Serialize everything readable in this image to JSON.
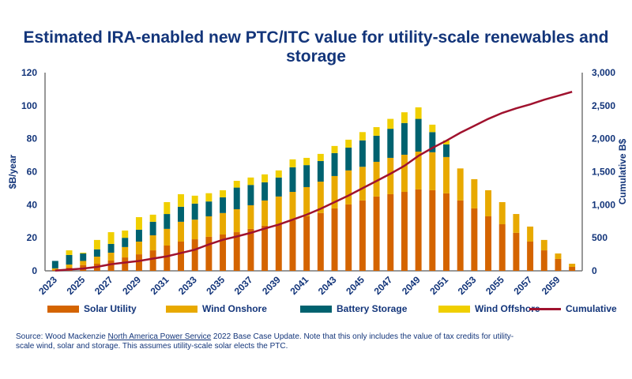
{
  "chart_data": {
    "type": "bar",
    "stacked": true,
    "title": "Estimated IRA-enabled new PTC/ITC value for utility-scale renewables and storage",
    "ylabel": "$B/year",
    "ylabel_right": "Cumulative B$",
    "ylim": [
      0,
      120
    ],
    "ylim_right": [
      0,
      3000
    ],
    "yticks": [
      "0",
      "20",
      "40",
      "60",
      "80",
      "100",
      "120"
    ],
    "yticks_right": [
      "0",
      "500",
      "1,000",
      "1,500",
      "2,000",
      "2,500",
      "3,000"
    ],
    "grid": false,
    "legend_position": "bottom",
    "categories": [
      2023,
      2024,
      2025,
      2026,
      2027,
      2028,
      2029,
      2030,
      2031,
      2032,
      2033,
      2034,
      2035,
      2036,
      2037,
      2038,
      2039,
      2040,
      2041,
      2042,
      2043,
      2044,
      2045,
      2046,
      2047,
      2048,
      2049,
      2050,
      2051,
      2052,
      2053,
      2054,
      2055,
      2056,
      2057,
      2058,
      2059,
      2060
    ],
    "xtick_labels": [
      "2023",
      "2025",
      "2027",
      "2029",
      "2031",
      "2033",
      "2035",
      "2037",
      "2039",
      "2041",
      "2043",
      "2045",
      "2047",
      "2049",
      "2051",
      "2053",
      "2055",
      "2057",
      "2059"
    ],
    "series": [
      {
        "name": "Solar Utility",
        "color": "#d46400",
        "type": "bar",
        "values": [
          0.5,
          2,
          3.5,
          4.3,
          6.2,
          8.1,
          10,
          12.4,
          15.3,
          17.7,
          19.1,
          20.6,
          22,
          23.4,
          25.4,
          27.3,
          28.2,
          30.6,
          33,
          35,
          37.8,
          40.2,
          42.6,
          45,
          46.4,
          47.8,
          49.3,
          48.8,
          46.9,
          42.6,
          37.8,
          33,
          28.2,
          23,
          17.7,
          12.4,
          7.2,
          2.4
        ]
      },
      {
        "name": "Wind Onshore",
        "color": "#e8a900",
        "type": "bar",
        "values": [
          1,
          1.8,
          2.5,
          4.3,
          4.8,
          6.3,
          7.7,
          9.1,
          10.1,
          12,
          11.9,
          12.4,
          13,
          13.9,
          14.3,
          15.3,
          16.8,
          17.2,
          17.7,
          19,
          19.6,
          20.6,
          20.4,
          21,
          22,
          22.5,
          22.9,
          23,
          22,
          19.4,
          17.7,
          15.8,
          13.4,
          11.4,
          9.1,
          6.3,
          3.3,
          1.9
        ]
      },
      {
        "name": "Battery Storage",
        "color": "#00626f",
        "type": "bar",
        "values": [
          4.5,
          5.8,
          4.5,
          4.4,
          5.3,
          5.6,
          7.2,
          8.2,
          9,
          9.1,
          9.7,
          9,
          9.5,
          13.1,
          12.3,
          11,
          11.5,
          14.9,
          13.3,
          12.5,
          13.9,
          13.8,
          16,
          15.8,
          17.6,
          19.2,
          19.8,
          12.2,
          7.6,
          0,
          0,
          0,
          0,
          0,
          0,
          0,
          0,
          0
        ]
      },
      {
        "name": "Wind Offshore",
        "color": "#f0cf00",
        "type": "bar",
        "values": [
          0,
          2.8,
          0.5,
          5.7,
          7.1,
          4.4,
          7.6,
          4.3,
          7.2,
          7.6,
          4.8,
          5,
          4.3,
          4.1,
          4.5,
          4.8,
          4.3,
          4.8,
          4.4,
          4.3,
          4.3,
          4.8,
          5,
          5.2,
          6,
          6.5,
          7,
          4.5,
          2.5,
          0,
          0,
          0,
          0,
          0,
          0,
          0,
          0,
          0
        ]
      },
      {
        "name": "Cumulative",
        "color": "#a0122e",
        "type": "line",
        "axis": "right",
        "values": [
          5,
          20,
          35,
          60,
          100,
          125,
          150,
          185,
          220,
          270,
          320,
          400,
          470,
          520,
          575,
          640,
          700,
          775,
          850,
          940,
          1040,
          1140,
          1250,
          1360,
          1470,
          1590,
          1740,
          1860,
          1970,
          2090,
          2195,
          2300,
          2390,
          2460,
          2520,
          2590,
          2650,
          2710
        ]
      }
    ]
  },
  "source": {
    "prefix": "Source: Wood Mackenzie ",
    "link": "North America Power Service",
    "suffix": " 2022 Base Case Update. Note that this only includes the value of tax credits for utility-scale wind, solar and storage. This assumes utility-scale solar elects the PTC."
  }
}
